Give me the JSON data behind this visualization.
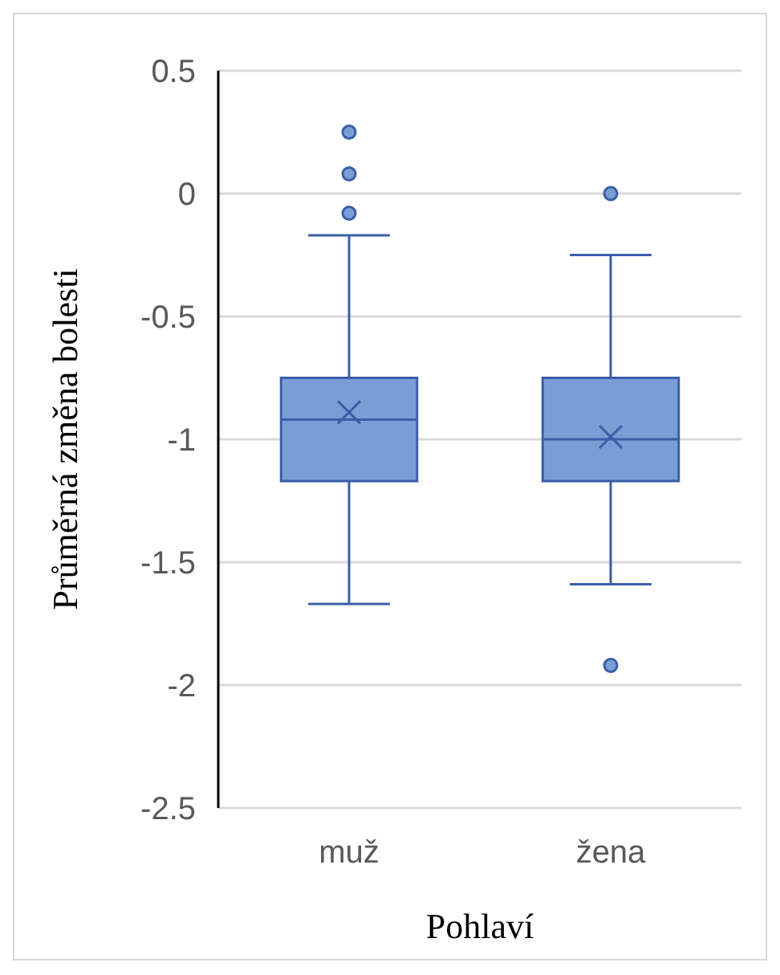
{
  "chart_data": {
    "type": "box",
    "xlabel": "Pohlaví",
    "ylabel": "Průměrná změna bolesti",
    "categories": [
      "muž",
      "žena"
    ],
    "series": [
      {
        "color": "#7a9dd6",
        "boxes": [
          {
            "low": -1.67,
            "q1": -1.17,
            "median": -0.92,
            "q3": -0.75,
            "high": -0.17,
            "mean": -0.89,
            "outliers": [
              0.25,
              0.08,
              -0.08
            ]
          },
          {
            "low": -1.59,
            "q1": -1.17,
            "median": -1.0,
            "q3": -0.75,
            "high": -0.25,
            "mean": -0.99,
            "outliers": [
              0,
              -1.92
            ]
          }
        ]
      }
    ],
    "ylim": [
      -2.5,
      0.5
    ],
    "yticks": [
      -2.5,
      -2,
      -1.5,
      -1,
      -0.5,
      0,
      0.5
    ],
    "grid": "y"
  }
}
